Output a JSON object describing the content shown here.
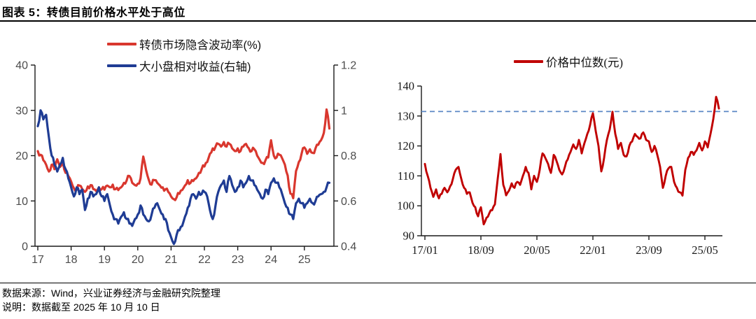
{
  "title": "图表 5：转债目前价格水平处于高位",
  "footer": {
    "source": "数据来源：Wind，兴业证券经济与金融研究院整理",
    "note": "说明：数据截至 2025 年 10 月 10 日"
  },
  "colors": {
    "left_red": "#d9372e",
    "left_blue": "#1f3c94",
    "right_red": "#c00000",
    "dashed_ref": "#5b87c5",
    "axis": "#1a1a1a",
    "left_tick_label": "#4c4c4c",
    "right_tick_label": "#1a1a1a"
  },
  "chart_data": [
    {
      "id": "implied-vol-vs-relative-return",
      "type": "line",
      "x_range": {
        "start": "2017-01",
        "end": "2025-10",
        "frequency": "monthly"
      },
      "x_tick_labels": [
        "17",
        "18",
        "19",
        "20",
        "21",
        "22",
        "23",
        "24",
        "25"
      ],
      "left_axis": {
        "min": 0,
        "max": 40,
        "ticks": [
          0,
          10,
          20,
          30,
          40
        ]
      },
      "right_axis": {
        "min": 0.4,
        "max": 1.2,
        "ticks": [
          0.4,
          0.6,
          0.8,
          1,
          1.2
        ]
      },
      "grid": false,
      "legend_position": "top",
      "series": [
        {
          "name": "转债市场隐含波动率(%)",
          "axis": "left",
          "color": "#d9372e",
          "values": [
            21,
            20.2,
            19,
            18,
            16.5,
            18,
            17,
            19.2,
            17.5,
            18.8,
            16.2,
            15.5,
            14.3,
            12.8,
            12.5,
            13.4,
            12.6,
            12,
            13.2,
            13.5,
            12.6,
            12.2,
            13,
            12.6,
            12.5,
            13.4,
            13,
            13.6,
            12.6,
            12.4,
            13,
            14,
            14.5,
            15.5,
            14,
            13.5,
            13.8,
            15,
            19.8,
            16.8,
            14.6,
            13.6,
            14.6,
            14,
            13.4,
            13,
            12.6,
            12,
            11,
            10.4,
            10.8,
            11.6,
            12.4,
            13.4,
            14.6,
            14,
            14.4,
            15,
            16.2,
            17,
            17.6,
            18.6,
            20.4,
            21.6,
            22,
            22.6,
            22,
            23,
            22,
            22.6,
            21.6,
            21,
            21.6,
            21,
            22,
            22.6,
            21.6,
            21,
            21.4,
            20,
            19,
            18.4,
            19,
            19.6,
            23.4,
            20,
            19.6,
            20.2,
            19.4,
            18,
            15.6,
            11.6,
            10.6,
            16.6,
            18.6,
            20.4,
            21.8,
            20.4,
            21.4,
            20.6,
            21.6,
            22.4,
            23.4,
            25,
            30.2,
            26
          ]
        },
        {
          "name": "大小盘相对收益(右轴)",
          "axis": "right",
          "color": "#1f3c94",
          "values": [
            0.93,
            1.0,
            0.96,
            0.98,
            0.88,
            0.8,
            0.76,
            0.73,
            0.76,
            0.79,
            0.74,
            0.7,
            0.66,
            0.62,
            0.66,
            0.63,
            0.65,
            0.56,
            0.61,
            0.64,
            0.62,
            0.63,
            0.66,
            0.62,
            0.6,
            0.63,
            0.58,
            0.54,
            0.52,
            0.5,
            0.53,
            0.55,
            0.52,
            0.5,
            0.49,
            0.52,
            0.54,
            0.58,
            0.54,
            0.52,
            0.51,
            0.54,
            0.57,
            0.59,
            0.56,
            0.54,
            0.52,
            0.47,
            0.44,
            0.41,
            0.45,
            0.47,
            0.49,
            0.53,
            0.57,
            0.61,
            0.63,
            0.61,
            0.64,
            0.63,
            0.64,
            0.62,
            0.56,
            0.52,
            0.58,
            0.64,
            0.67,
            0.69,
            0.64,
            0.71,
            0.67,
            0.64,
            0.66,
            0.69,
            0.66,
            0.68,
            0.71,
            0.69,
            0.67,
            0.65,
            0.63,
            0.61,
            0.65,
            0.63,
            0.68,
            0.7,
            0.68,
            0.66,
            0.63,
            0.59,
            0.57,
            0.54,
            0.52,
            0.59,
            0.61,
            0.59,
            0.57,
            0.59,
            0.61,
            0.59,
            0.6,
            0.62,
            0.63,
            0.64,
            0.66,
            0.68
          ]
        }
      ]
    },
    {
      "id": "median-price",
      "type": "line",
      "x_range": {
        "start": "2017-01",
        "end": "2025-10",
        "frequency": "monthly"
      },
      "x_tick_labels": [
        "17/01",
        "18/09",
        "20/05",
        "22/01",
        "23/09",
        "25/05"
      ],
      "y_axis": {
        "min": 90,
        "max": 140,
        "ticks": [
          90,
          100,
          110,
          120,
          130,
          140
        ]
      },
      "grid": false,
      "legend_position": "top",
      "reference_line": {
        "value": 131.5,
        "style": "dashed",
        "color": "#5b87c5"
      },
      "series": [
        {
          "name": "价格中位数(元)",
          "axis": "left",
          "color": "#c00000",
          "values": [
            114,
            110,
            106,
            103,
            105.5,
            102.5,
            104,
            106,
            104.5,
            106.5,
            109,
            112,
            113,
            109,
            106,
            104,
            104.5,
            101,
            99.5,
            96.5,
            99.5,
            93.8,
            96,
            97.5,
            98.5,
            100.5,
            109,
            117.3,
            107,
            103.5,
            105,
            107.5,
            106,
            108,
            107,
            110,
            113,
            111,
            105.5,
            110,
            108,
            112,
            117.5,
            116,
            114,
            111,
            117,
            115,
            112,
            110.5,
            113,
            115.5,
            118,
            120.5,
            119,
            122,
            117.5,
            121,
            124,
            127,
            130.9,
            125,
            120,
            111.5,
            116,
            122,
            125.5,
            131.4,
            124,
            119,
            121,
            117,
            116.5,
            120,
            121.5,
            124,
            123,
            122.5,
            124.5,
            122,
            121.5,
            118,
            120,
            117,
            113,
            106,
            110,
            112.5,
            113,
            108,
            106,
            104.5,
            103.4,
            112,
            116,
            118,
            117,
            118.5,
            121,
            118.5,
            121.5,
            119.5,
            124,
            129,
            136.4,
            132.5
          ]
        }
      ]
    }
  ]
}
